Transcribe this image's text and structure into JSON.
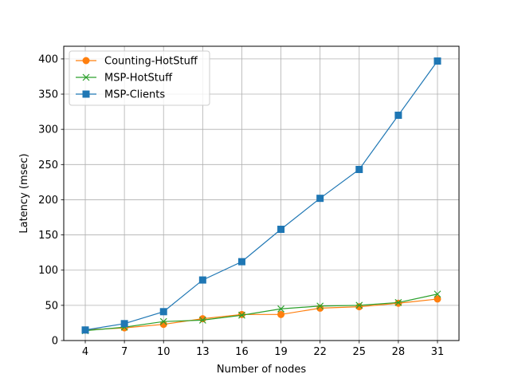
{
  "chart_data": {
    "type": "line",
    "title": "",
    "xlabel": "Number of nodes",
    "ylabel": "Latency (msec)",
    "x": [
      4,
      7,
      10,
      13,
      16,
      19,
      22,
      25,
      28,
      31
    ],
    "xlim": [
      2.35,
      32.65
    ],
    "ylim": [
      0,
      418
    ],
    "xticks": [
      4,
      7,
      10,
      13,
      16,
      19,
      22,
      25,
      28,
      31
    ],
    "yticks": [
      0,
      50,
      100,
      150,
      200,
      250,
      300,
      350,
      400
    ],
    "grid": true,
    "legend_position": "top-left",
    "series": [
      {
        "name": "Counting-HotStuff",
        "color": "#ff7f0e",
        "marker": "circle",
        "values": [
          15,
          18,
          23,
          31,
          37,
          37,
          46,
          48,
          53,
          59
        ]
      },
      {
        "name": "MSP-HotStuff",
        "color": "#2ca02c",
        "marker": "x",
        "values": [
          14,
          19,
          27,
          29,
          36,
          45,
          49,
          50,
          54,
          66
        ]
      },
      {
        "name": "MSP-Clients",
        "color": "#1f77b4",
        "marker": "square",
        "values": [
          15,
          24,
          41,
          86,
          112,
          158,
          202,
          243,
          320,
          397
        ]
      }
    ]
  }
}
